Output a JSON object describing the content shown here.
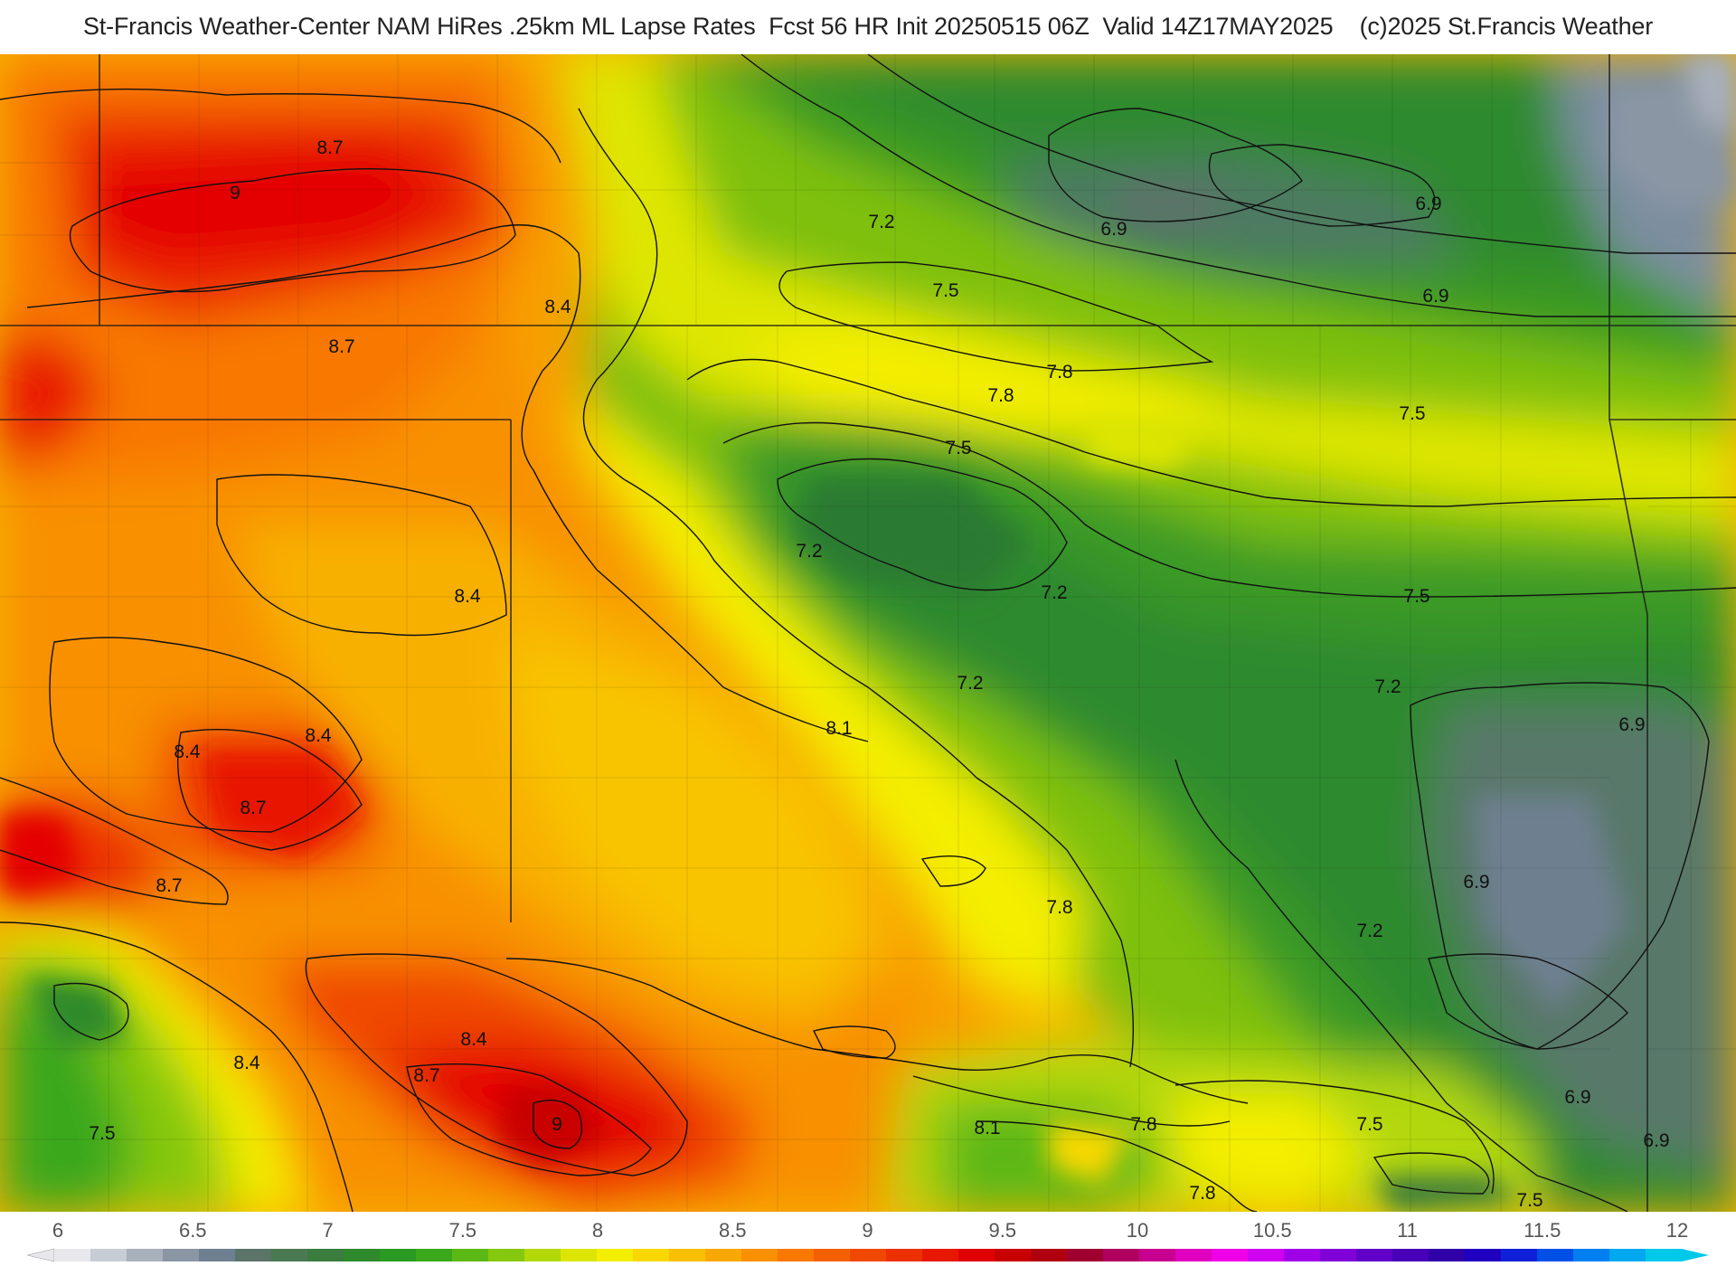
{
  "header": {
    "title": "St-Francis Weather-Center NAM HiRes .25km ML Lapse Rates  Fcst 56 HR Init 20250515 06Z  Valid 14Z17MAY2025    (c)2025 St.Francis Weather"
  },
  "map": {
    "contour_labels": [
      {
        "id": "lbl-1",
        "text": "8.7"
      },
      {
        "id": "lbl-2",
        "text": "9"
      },
      {
        "id": "lbl-3",
        "text": "8.4"
      },
      {
        "id": "lbl-4",
        "text": "8.7"
      },
      {
        "id": "lbl-5",
        "text": "7.2"
      },
      {
        "id": "lbl-6",
        "text": "7.5"
      },
      {
        "id": "lbl-7",
        "text": "6.9"
      },
      {
        "id": "lbl-8",
        "text": "6.9"
      },
      {
        "id": "lbl-9",
        "text": "6.9"
      },
      {
        "id": "lbl-10",
        "text": "7.8"
      },
      {
        "id": "lbl-11",
        "text": "7.8"
      },
      {
        "id": "lbl-12",
        "text": "7.5"
      },
      {
        "id": "lbl-13",
        "text": "7.5"
      },
      {
        "id": "lbl-14",
        "text": "7.2"
      },
      {
        "id": "lbl-15",
        "text": "7.2"
      },
      {
        "id": "lbl-16",
        "text": "7.5"
      },
      {
        "id": "lbl-17",
        "text": "8.4"
      },
      {
        "id": "lbl-18",
        "text": "7.2"
      },
      {
        "id": "lbl-19",
        "text": "7.2"
      },
      {
        "id": "lbl-20",
        "text": "6.9"
      },
      {
        "id": "lbl-21",
        "text": "8.4"
      },
      {
        "id": "lbl-22",
        "text": "8.4"
      },
      {
        "id": "lbl-23",
        "text": "8.1"
      },
      {
        "id": "lbl-24",
        "text": "8.7"
      },
      {
        "id": "lbl-25",
        "text": "8.7"
      },
      {
        "id": "lbl-26",
        "text": "6.9"
      },
      {
        "id": "lbl-27",
        "text": "7.8"
      },
      {
        "id": "lbl-28",
        "text": "7.2"
      },
      {
        "id": "lbl-29",
        "text": "8.4"
      },
      {
        "id": "lbl-30",
        "text": "8.4"
      },
      {
        "id": "lbl-31",
        "text": "8.7"
      },
      {
        "id": "lbl-32",
        "text": "6.9"
      },
      {
        "id": "lbl-33",
        "text": "9"
      },
      {
        "id": "lbl-34",
        "text": "8.1"
      },
      {
        "id": "lbl-35",
        "text": "7.8"
      },
      {
        "id": "lbl-36",
        "text": "7.5"
      },
      {
        "id": "lbl-37",
        "text": "7.5"
      },
      {
        "id": "lbl-38",
        "text": "6.9"
      },
      {
        "id": "lbl-39",
        "text": "7.8"
      },
      {
        "id": "lbl-40",
        "text": "7.5"
      }
    ]
  },
  "colorbar": {
    "ticks": [
      "6",
      "6.5",
      "7",
      "7.5",
      "8",
      "8.5",
      "9",
      "9.5",
      "10",
      "10.5",
      "11",
      "11.5",
      "12"
    ],
    "colors": [
      "#e8e8ec",
      "#c8ccd4",
      "#a8b0bc",
      "#8a96a4",
      "#6e8090",
      "#5a7468",
      "#4a7a52",
      "#3a7d3e",
      "#2e8a2c",
      "#2a9a22",
      "#3aa81a",
      "#5cb814",
      "#86c80e",
      "#b2d808",
      "#dde602",
      "#f4ee00",
      "#f8d800",
      "#f8c000",
      "#f8a800",
      "#f89000",
      "#f87800",
      "#f46000",
      "#f04800",
      "#ec3000",
      "#e81800",
      "#e00000",
      "#c80000",
      "#b00010",
      "#a00030",
      "#b00060",
      "#c80090",
      "#e000c0",
      "#f000e8",
      "#d000f0",
      "#a000e8",
      "#8000d8",
      "#6000c8",
      "#4800b8",
      "#3000a8",
      "#2000c0",
      "#1020d8",
      "#0050e8",
      "#0080f0",
      "#00a8f0",
      "#00c8e8"
    ]
  }
}
